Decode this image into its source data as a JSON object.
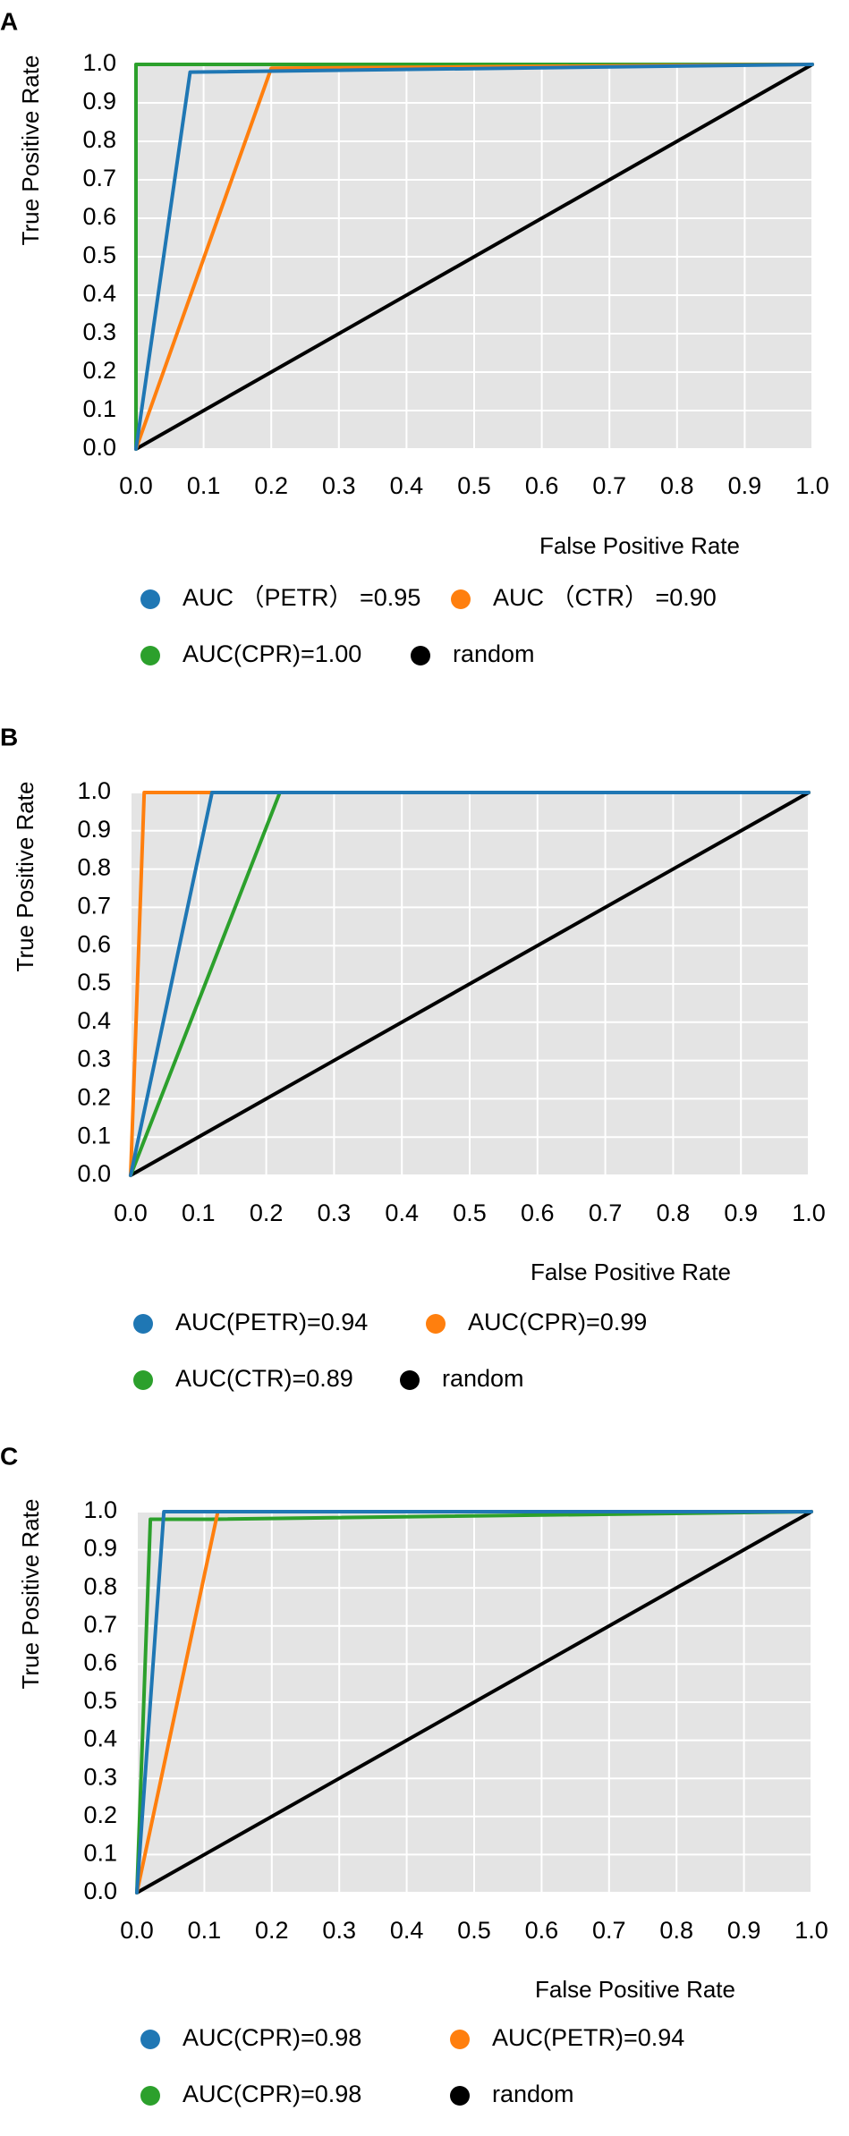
{
  "chart_data": [
    {
      "type": "line",
      "panel": "A",
      "xlabel": "False Positive Rate",
      "ylabel": "True Positive Rate",
      "xlim": [
        0,
        1
      ],
      "ylim": [
        0,
        1
      ],
      "xticks": [
        "0.0",
        "0.1",
        "0.2",
        "0.3",
        "0.4",
        "0.5",
        "0.6",
        "0.7",
        "0.8",
        "0.9",
        "1.0"
      ],
      "yticks": [
        "0.0",
        "0.1",
        "0.2",
        "0.3",
        "0.4",
        "0.5",
        "0.6",
        "0.7",
        "0.8",
        "0.9",
        "1.0"
      ],
      "grid": true,
      "legend_position": "bottom",
      "series": [
        {
          "name": "AUC （PETR） =0.95",
          "color": "#1f77b4",
          "x": [
            0,
            0.08,
            1
          ],
          "y": [
            0,
            0.98,
            1
          ]
        },
        {
          "name": "AUC （CTR） =0.90",
          "color": "#ff7f0e",
          "x": [
            0,
            0.2,
            1
          ],
          "y": [
            0,
            0.99,
            1
          ]
        },
        {
          "name": "AUC(CPR)=1.00",
          "color": "#2ca02c",
          "x": [
            0,
            0,
            1
          ],
          "y": [
            0,
            1,
            1
          ]
        },
        {
          "name": "random",
          "color": "#000000",
          "x": [
            0,
            1
          ],
          "y": [
            0,
            1
          ]
        }
      ]
    },
    {
      "type": "line",
      "panel": "B",
      "xlabel": "False Positive Rate",
      "ylabel": "True Positive Rate",
      "xlim": [
        0,
        1
      ],
      "ylim": [
        0,
        1
      ],
      "xticks": [
        "0.0",
        "0.1",
        "0.2",
        "0.3",
        "0.4",
        "0.5",
        "0.6",
        "0.7",
        "0.8",
        "0.9",
        "1.0"
      ],
      "yticks": [
        "0.0",
        "0.1",
        "0.2",
        "0.3",
        "0.4",
        "0.5",
        "0.6",
        "0.7",
        "0.8",
        "0.9",
        "1.0"
      ],
      "grid": true,
      "legend_position": "bottom",
      "series": [
        {
          "name": "AUC(PETR)=0.94",
          "color": "#1f77b4",
          "x": [
            0,
            0.12,
            1
          ],
          "y": [
            0,
            1,
            1
          ]
        },
        {
          "name": "AUC(CPR)=0.99",
          "color": "#ff7f0e",
          "x": [
            0,
            0.02,
            1
          ],
          "y": [
            0,
            1,
            1
          ]
        },
        {
          "name": "AUC(CTR)=0.89",
          "color": "#2ca02c",
          "x": [
            0,
            0.22,
            1
          ],
          "y": [
            0,
            1,
            1
          ]
        },
        {
          "name": "random",
          "color": "#000000",
          "x": [
            0,
            1
          ],
          "y": [
            0,
            1
          ]
        }
      ]
    },
    {
      "type": "line",
      "panel": "C",
      "xlabel": "False Positive Rate",
      "ylabel": "True Positive Rate",
      "xlim": [
        0,
        1
      ],
      "ylim": [
        0,
        1
      ],
      "xticks": [
        "0.0",
        "0.1",
        "0.2",
        "0.3",
        "0.4",
        "0.5",
        "0.6",
        "0.7",
        "0.8",
        "0.9",
        "1.0"
      ],
      "yticks": [
        "0.0",
        "0.1",
        "0.2",
        "0.3",
        "0.4",
        "0.5",
        "0.6",
        "0.7",
        "0.8",
        "0.9",
        "1.0"
      ],
      "grid": true,
      "legend_position": "bottom",
      "series": [
        {
          "name": "AUC(CPR)=0.98",
          "color": "#1f77b4",
          "x": [
            0,
            0.04,
            0.12,
            1
          ],
          "y": [
            0,
            1,
            1,
            1
          ]
        },
        {
          "name": "AUC(PETR)=0.94",
          "color": "#ff7f0e",
          "x": [
            0,
            0.12,
            1
          ],
          "y": [
            0,
            1,
            1
          ]
        },
        {
          "name": "AUC(CPR)=0.98",
          "color": "#2ca02c",
          "x": [
            0,
            0.02,
            0.11,
            1
          ],
          "y": [
            0,
            0.98,
            0.98,
            1
          ]
        },
        {
          "name": "random",
          "color": "#000000",
          "x": [
            0,
            1
          ],
          "y": [
            0,
            1
          ]
        }
      ]
    }
  ]
}
